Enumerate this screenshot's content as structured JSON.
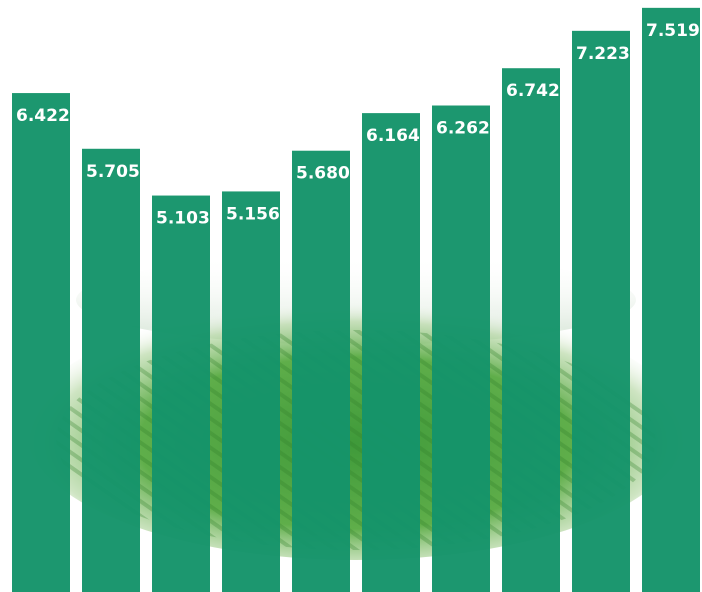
{
  "chart_data": {
    "type": "bar",
    "categories": [
      null,
      null,
      null,
      null,
      null,
      null,
      null,
      null,
      null,
      null
    ],
    "values": [
      6.422,
      5.705,
      5.103,
      5.156,
      5.68,
      6.164,
      6.262,
      6.742,
      7.223,
      7.519
    ],
    "value_labels": [
      "6.422",
      "5.705",
      "5.103",
      "5.156",
      "5.680",
      "6.164",
      "6.262",
      "6.742",
      "7.223",
      "7.519"
    ],
    "color": "#15946a",
    "ylim": [
      0,
      7.62
    ]
  }
}
